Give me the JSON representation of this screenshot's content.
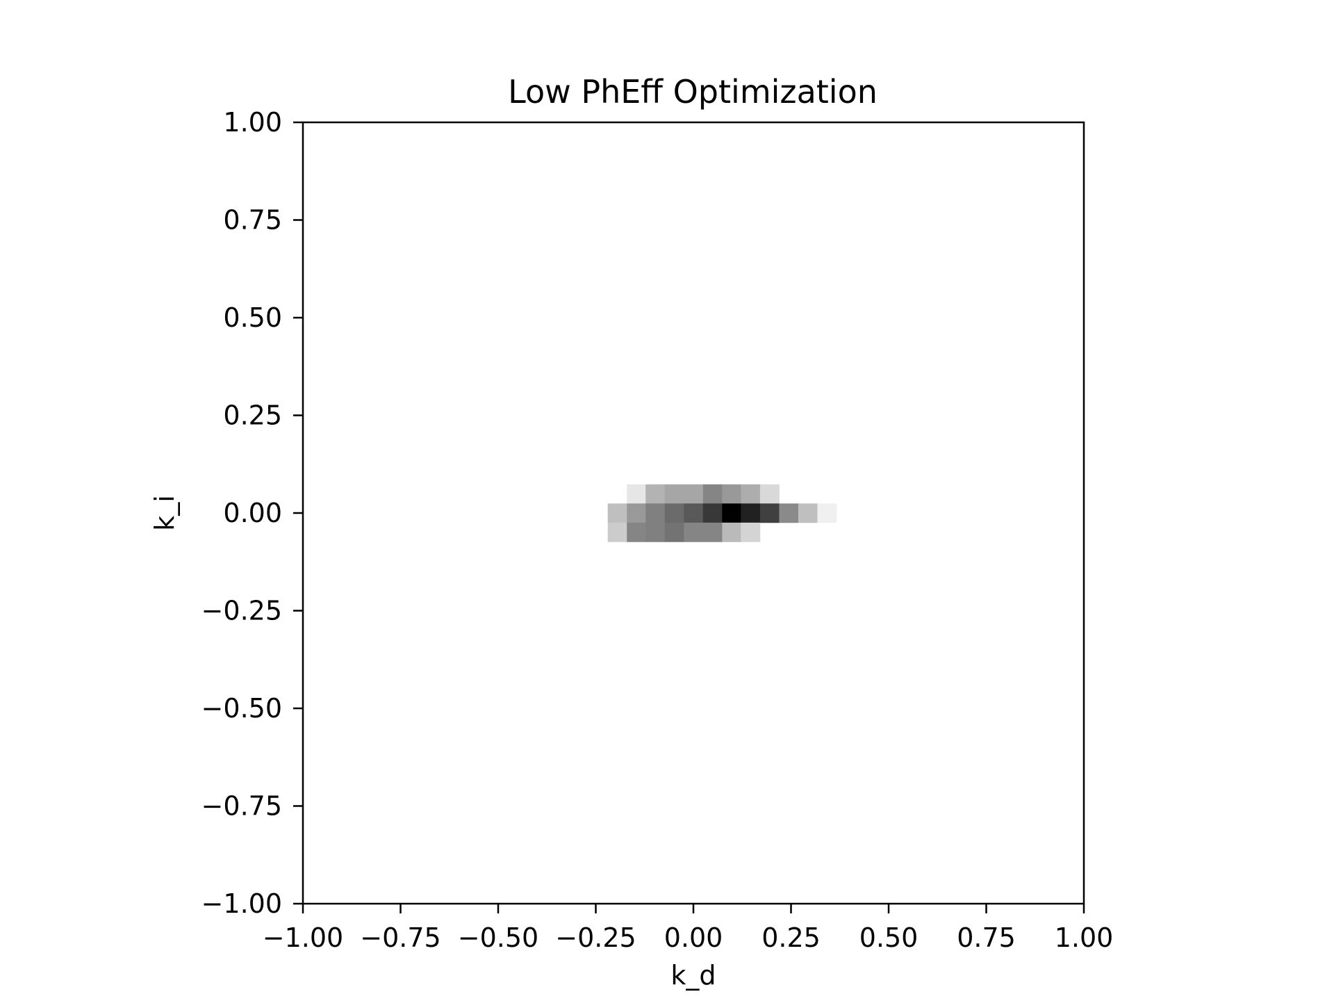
{
  "chart_data": {
    "type": "heatmap",
    "title": "Low PhEff Optimization",
    "xlabel": "k_d",
    "ylabel": "k_i",
    "xlim": [
      -1.0,
      1.0
    ],
    "ylim": [
      -1.0,
      1.0
    ],
    "grid": false,
    "colormap": "Greys",
    "xticks": [
      "−1.00",
      "−0.75",
      "−0.50",
      "−0.25",
      "0.00",
      "0.25",
      "0.50",
      "0.75",
      "1.00"
    ],
    "yticks": [
      "1.00",
      "0.75",
      "0.50",
      "0.25",
      "0.00",
      "−0.25",
      "−0.50",
      "−0.75",
      "−1.00"
    ],
    "cell_width": 0.0488,
    "cell_height": 0.0488,
    "cells": [
      {
        "x": -0.146,
        "y": 0.049,
        "v": 0.1
      },
      {
        "x": -0.098,
        "y": 0.049,
        "v": 0.3
      },
      {
        "x": -0.049,
        "y": 0.049,
        "v": 0.35
      },
      {
        "x": 0.0,
        "y": 0.049,
        "v": 0.35
      },
      {
        "x": 0.049,
        "y": 0.049,
        "v": 0.48
      },
      {
        "x": 0.098,
        "y": 0.049,
        "v": 0.4
      },
      {
        "x": 0.146,
        "y": 0.049,
        "v": 0.32
      },
      {
        "x": 0.195,
        "y": 0.049,
        "v": 0.15
      },
      {
        "x": -0.195,
        "y": 0.0,
        "v": 0.25
      },
      {
        "x": -0.146,
        "y": 0.0,
        "v": 0.4
      },
      {
        "x": -0.098,
        "y": 0.0,
        "v": 0.5
      },
      {
        "x": -0.049,
        "y": 0.0,
        "v": 0.58
      },
      {
        "x": 0.0,
        "y": 0.0,
        "v": 0.65
      },
      {
        "x": 0.049,
        "y": 0.0,
        "v": 0.78
      },
      {
        "x": 0.098,
        "y": 0.0,
        "v": 1.0
      },
      {
        "x": 0.146,
        "y": 0.0,
        "v": 0.87
      },
      {
        "x": 0.195,
        "y": 0.0,
        "v": 0.75
      },
      {
        "x": 0.244,
        "y": 0.0,
        "v": 0.46
      },
      {
        "x": 0.293,
        "y": 0.0,
        "v": 0.25
      },
      {
        "x": 0.342,
        "y": 0.0,
        "v": 0.06
      },
      {
        "x": -0.195,
        "y": -0.049,
        "v": 0.2
      },
      {
        "x": -0.146,
        "y": -0.049,
        "v": 0.48
      },
      {
        "x": -0.098,
        "y": -0.049,
        "v": 0.5
      },
      {
        "x": -0.049,
        "y": -0.049,
        "v": 0.55
      },
      {
        "x": 0.0,
        "y": -0.049,
        "v": 0.48
      },
      {
        "x": 0.049,
        "y": -0.049,
        "v": 0.48
      },
      {
        "x": 0.098,
        "y": -0.049,
        "v": 0.27
      },
      {
        "x": 0.146,
        "y": -0.049,
        "v": 0.17
      }
    ]
  }
}
